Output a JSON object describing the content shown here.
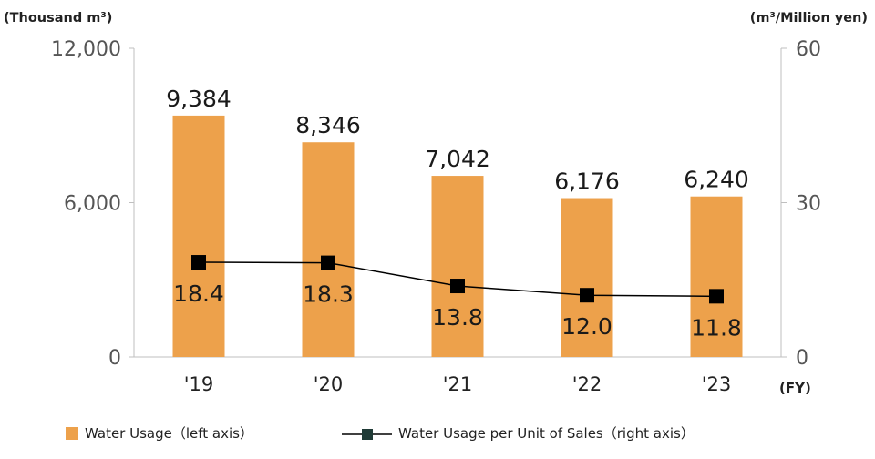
{
  "chart_data": {
    "type": "bar+line",
    "categories": [
      "'19",
      "'20",
      "'21",
      "'22",
      "'23"
    ],
    "x_axis_suffix": "(FY)",
    "left_axis": {
      "unit_label": "(Thousand m³)",
      "range": [
        0,
        12000
      ],
      "ticks": [
        0,
        6000,
        12000
      ],
      "tick_labels": [
        "0",
        "6,000",
        "12,000"
      ]
    },
    "right_axis": {
      "unit_label": "(m³/Million yen)",
      "range": [
        0,
        60
      ],
      "ticks": [
        0,
        30,
        60
      ],
      "tick_labels": [
        "0",
        "30",
        "60"
      ]
    },
    "series": [
      {
        "name": "Water Usage（left axis）",
        "kind": "bar",
        "axis": "left",
        "color": "#EDA14B",
        "values": [
          9384,
          8346,
          7042,
          6176,
          6240
        ],
        "labels": [
          "9,384",
          "8,346",
          "7,042",
          "6,176",
          "6,240"
        ]
      },
      {
        "name": "Water Usage per Unit of Sales（right axis）",
        "kind": "line",
        "axis": "right",
        "color": "#000000",
        "values": [
          18.4,
          18.3,
          13.8,
          12.0,
          11.8
        ],
        "labels": [
          "18.4",
          "18.3",
          "13.8",
          "12.0",
          "11.8"
        ]
      }
    ],
    "grid": false,
    "legend_position": "bottom"
  }
}
